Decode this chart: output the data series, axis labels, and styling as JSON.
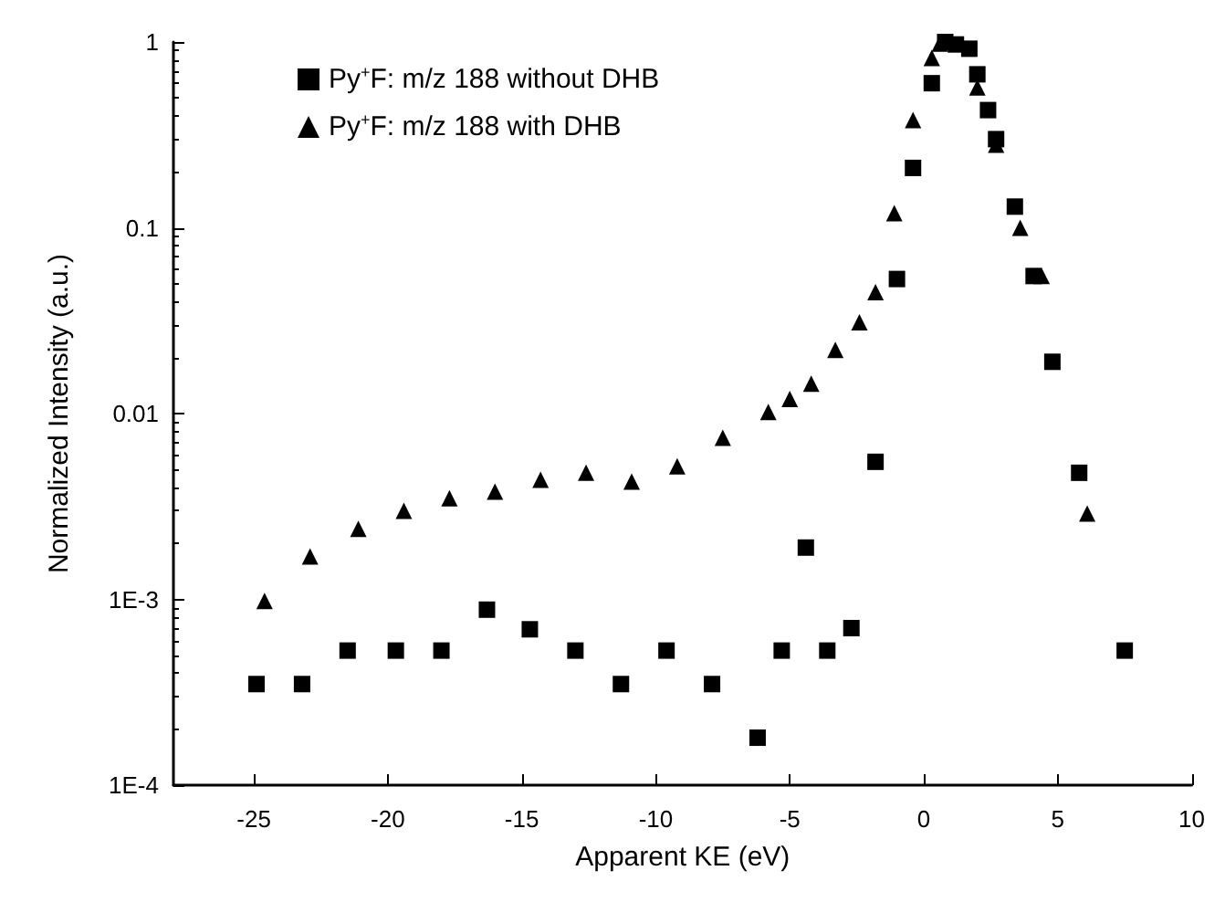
{
  "chart_data": {
    "type": "scatter",
    "xlabel": "Apparent KE (eV)",
    "ylabel": "Normalized Intensity (a.u.)",
    "log": "y",
    "grid": false,
    "legend": "top left",
    "xlim": [
      -28,
      10
    ],
    "xticks": [
      -25,
      -20,
      -15,
      -10,
      -5,
      0,
      5,
      10
    ],
    "ylim": [
      0.0001,
      1
    ],
    "yticks": [
      {
        "value": 1,
        "label": "1"
      },
      {
        "value": 0.1,
        "label": "0.1"
      },
      {
        "value": 0.01,
        "label": "0.01"
      },
      {
        "value": 0.001,
        "label": "1E-3"
      },
      {
        "value": 0.0001,
        "label": "1E-4"
      }
    ],
    "series": [
      {
        "name": "Py$^{+}$F: m/z 188 without DHB",
        "color": "#000000",
        "marker": "square",
        "x": [
          -24.9,
          -23.2,
          -21.5,
          -19.7,
          -18.0,
          -16.3,
          -14.7,
          -13.0,
          -11.3,
          -9.6,
          -7.9,
          -6.2,
          -5.3,
          -4.4,
          -3.6,
          -2.7,
          -1.8,
          -1.0,
          -0.4,
          0.3,
          0.8,
          1.2,
          1.7,
          2.0,
          2.4,
          2.7,
          3.4,
          4.1,
          4.8,
          5.8,
          7.5
        ],
        "values": [
          0.00035,
          0.00035,
          0.00053,
          0.00053,
          0.00053,
          0.00088,
          0.00069,
          0.00053,
          0.00035,
          0.00053,
          0.00035,
          0.00018,
          0.00053,
          0.0019,
          0.00053,
          0.0007,
          0.0055,
          0.053,
          0.21,
          0.6,
          1.0,
          0.97,
          0.92,
          0.67,
          0.43,
          0.3,
          0.13,
          0.055,
          0.019,
          0.0048,
          0.00053
        ]
      },
      {
        "name": "Py$^{+}$F: m/z 188 with DHB",
        "color": "#000000",
        "marker": "triangle",
        "x": [
          -24.6,
          -22.9,
          -21.1,
          -19.4,
          -17.7,
          -16.0,
          -14.3,
          -12.6,
          -10.9,
          -9.2,
          -7.5,
          -5.8,
          -5.0,
          -4.2,
          -3.3,
          -2.4,
          -1.8,
          -1.1,
          -0.4,
          0.3,
          0.6,
          2.0,
          2.7,
          3.6,
          4.4,
          6.1
        ],
        "values": [
          0.00098,
          0.0017,
          0.0024,
          0.003,
          0.0035,
          0.0038,
          0.0044,
          0.0048,
          0.0043,
          0.0052,
          0.0074,
          0.0102,
          0.012,
          0.0145,
          0.022,
          0.031,
          0.045,
          0.12,
          0.38,
          0.82,
          0.98,
          0.57,
          0.28,
          0.1,
          0.055,
          0.0029
        ]
      }
    ]
  }
}
